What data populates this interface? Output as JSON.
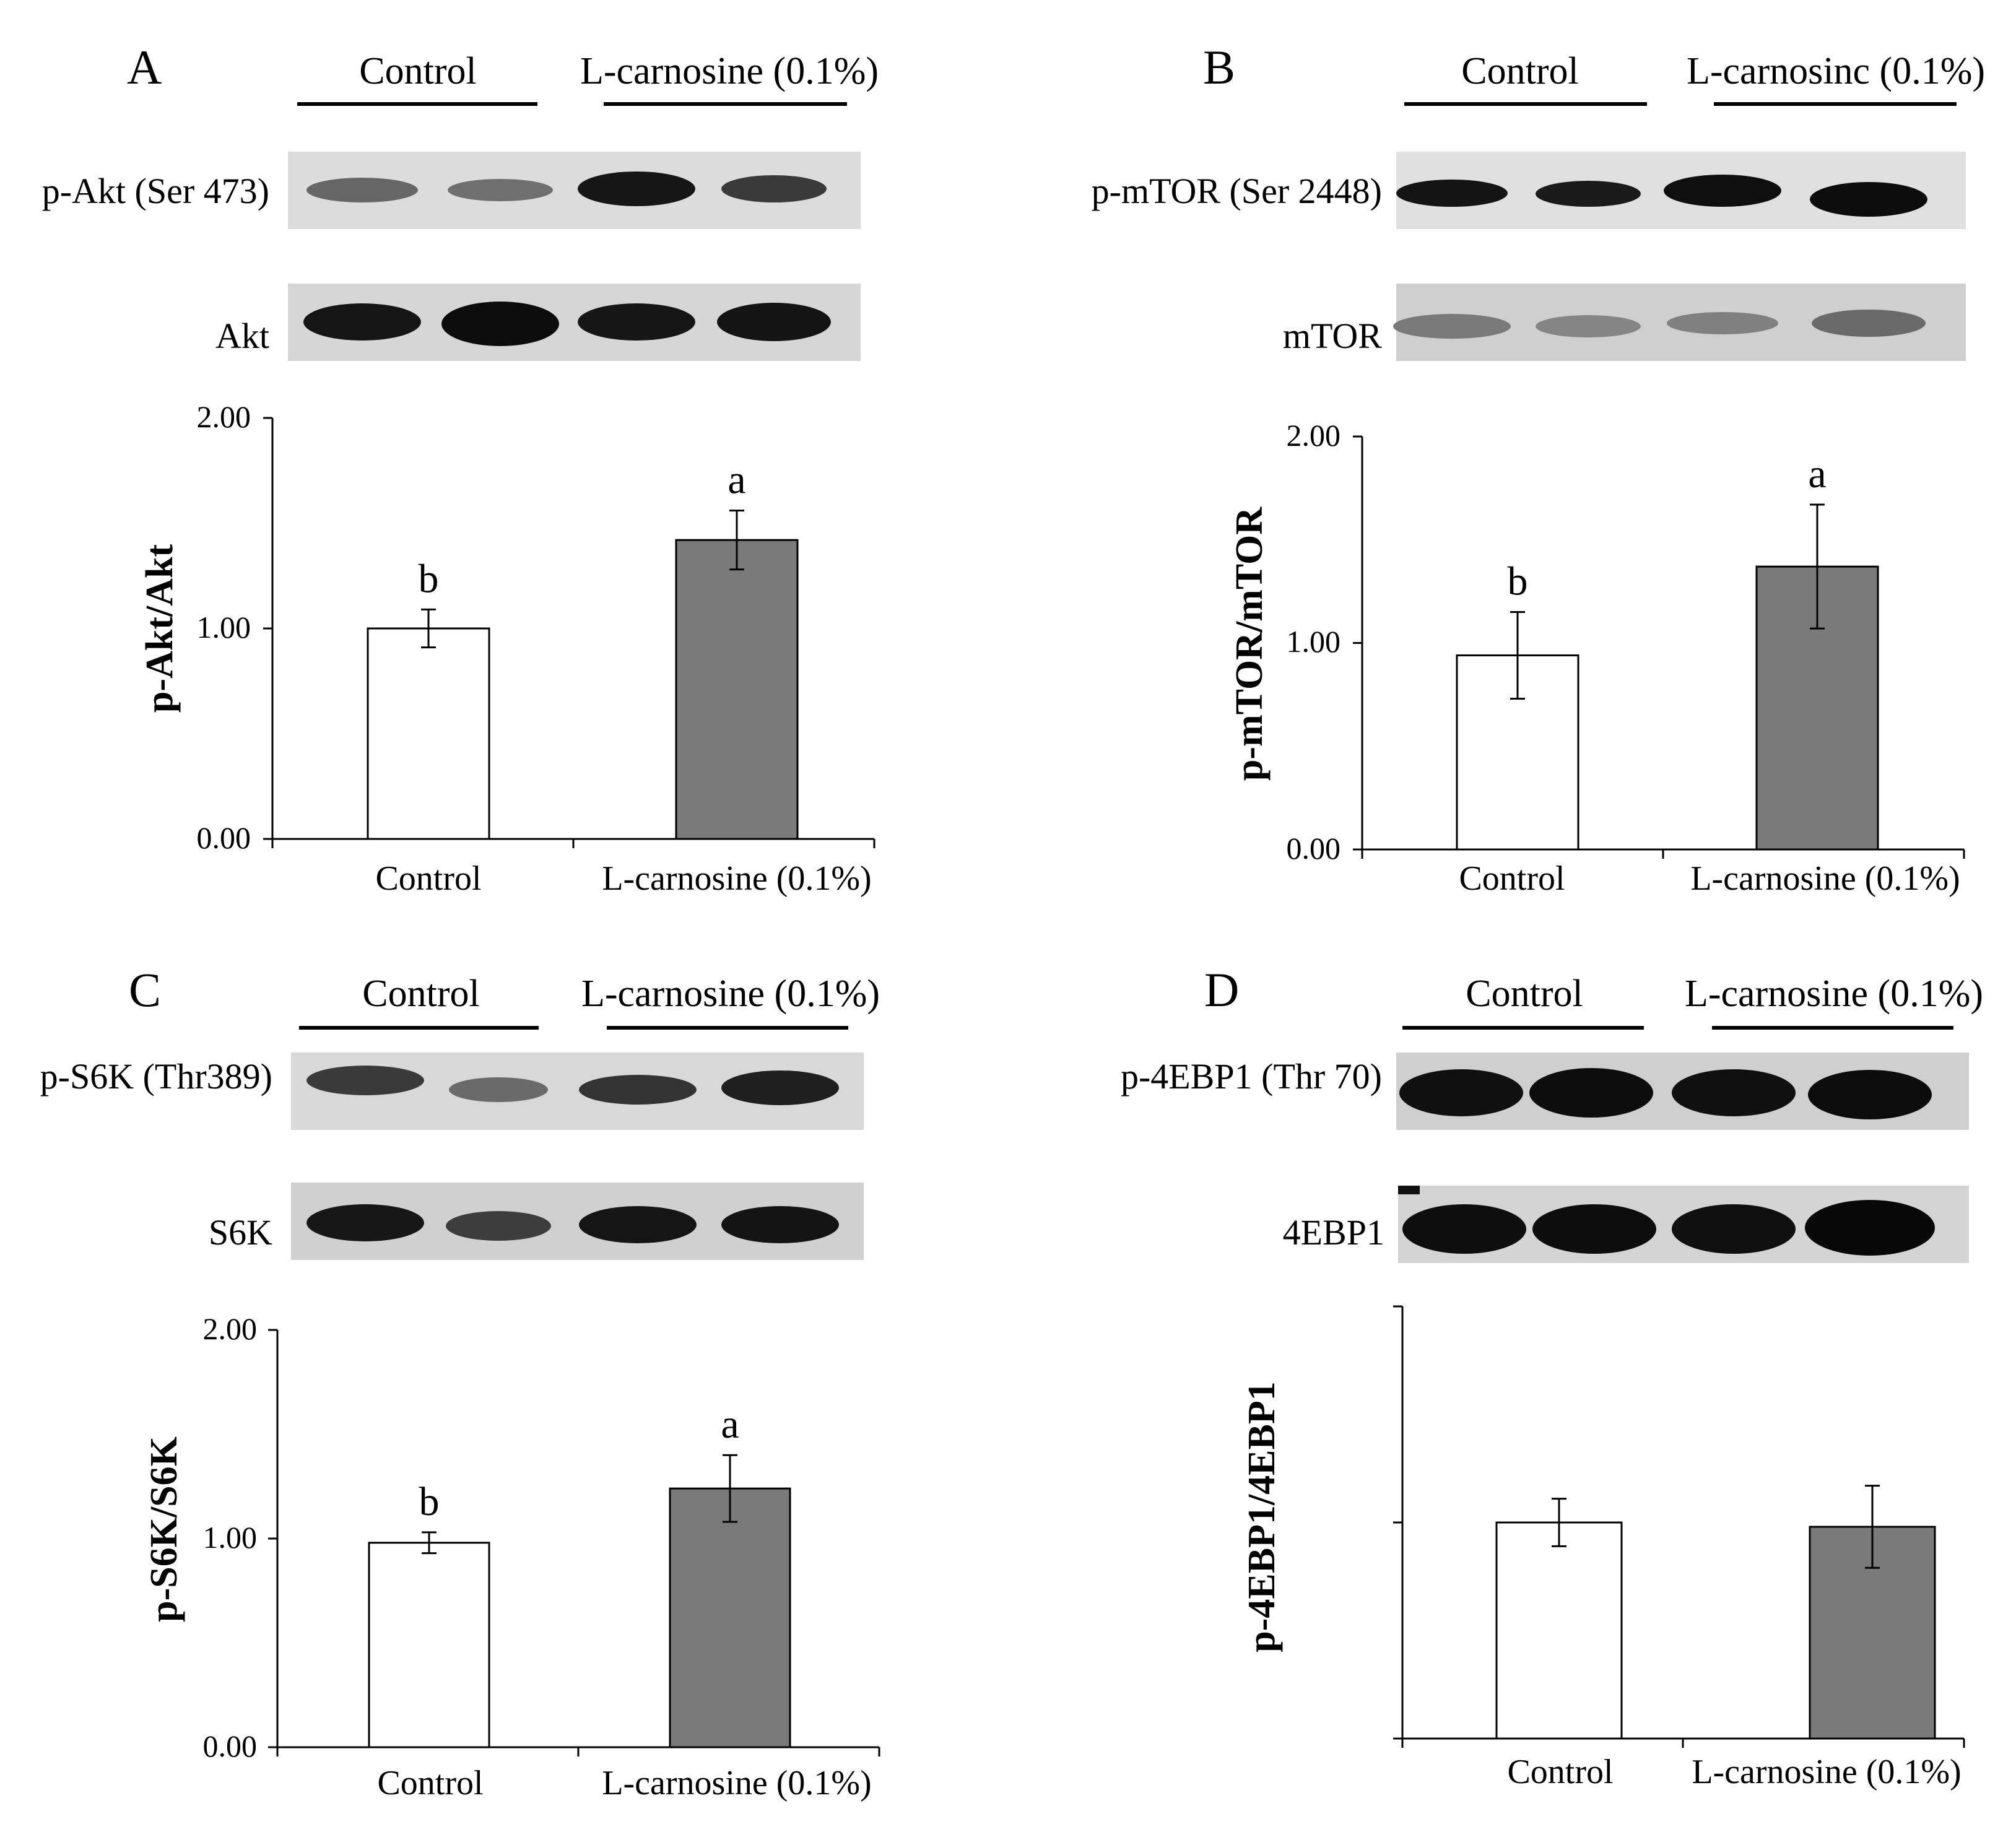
{
  "colors": {
    "control_fill": "#ffffff",
    "treatment_fill": "#7a7a7a",
    "axis": "#000000"
  },
  "chart_data": [
    {
      "panel": "A",
      "type": "bar",
      "group_labels": [
        "Control",
        "L-carnosine (0.1%)"
      ],
      "blot_rows": [
        "p-Akt (Ser 473)",
        "Akt"
      ],
      "categories": [
        "Control",
        "L-carnosine (0.1%)"
      ],
      "values": [
        1.0,
        1.42
      ],
      "errors": [
        0.09,
        0.14
      ],
      "significance": [
        "b",
        "a"
      ],
      "ylabel": "p-Akt/Akt",
      "yticks": [
        "0.00",
        "1.00",
        "2.00"
      ],
      "ylim": [
        0,
        2
      ],
      "colors": [
        "#ffffff",
        "#7a7a7a"
      ],
      "grid": false
    },
    {
      "panel": "B",
      "type": "bar",
      "group_labels": [
        "Control",
        "L-carnosinc (0.1%)"
      ],
      "blot_rows": [
        "p-mTOR (Ser 2448)",
        "mTOR"
      ],
      "categories": [
        "Control",
        "L-carnosine (0.1%)"
      ],
      "values": [
        0.94,
        1.37
      ],
      "errors": [
        0.21,
        0.3
      ],
      "significance": [
        "b",
        "a"
      ],
      "ylabel": "p-mTOR/mTOR",
      "yticks": [
        "0.00",
        "1.00",
        "2.00"
      ],
      "ylim": [
        0,
        2
      ],
      "colors": [
        "#ffffff",
        "#7a7a7a"
      ],
      "grid": false
    },
    {
      "panel": "C",
      "type": "bar",
      "group_labels": [
        "Control",
        "L-carnosine (0.1%)"
      ],
      "blot_rows": [
        "p-S6K (Thr389)",
        "S6K"
      ],
      "categories": [
        "Control",
        "L-carnosine (0.1%)"
      ],
      "values": [
        0.98,
        1.24
      ],
      "errors": [
        0.05,
        0.16
      ],
      "significance": [
        "b",
        "a"
      ],
      "ylabel": "p-S6K/S6K",
      "yticks": [
        "0.00",
        "1.00",
        "2.00"
      ],
      "ylim": [
        0,
        2
      ],
      "colors": [
        "#ffffff",
        "#7a7a7a"
      ],
      "grid": false
    },
    {
      "panel": "D",
      "type": "bar",
      "group_labels": [
        "Control",
        "L-carnosine (0.1%)"
      ],
      "blot_rows": [
        "p-4EBP1 (Thr 70)",
        "4EBP1"
      ],
      "categories": [
        "Control",
        "L-carnosine (0.1%)"
      ],
      "values": [
        1.0,
        0.98
      ],
      "errors": [
        0.11,
        0.19
      ],
      "significance": [
        "",
        ""
      ],
      "ylabel": "p-4EBP1/4EBP1",
      "yticks": [
        "",
        "",
        ""
      ],
      "ylim": [
        0,
        2
      ],
      "colors": [
        "#ffffff",
        "#7a7a7a"
      ],
      "grid": false
    }
  ]
}
